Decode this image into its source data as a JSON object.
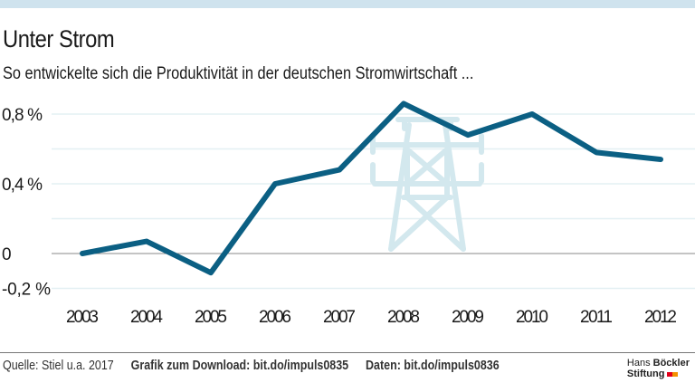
{
  "header": {
    "title": "Unter Strom",
    "subtitle": "So entwickelte sich die Produktivität in der deutschen Stromwirtschaft ..."
  },
  "chart_data": {
    "type": "line",
    "title": "Unter Strom",
    "subtitle": "So entwickelte sich die Produktivität in der deutschen Stromwirtschaft ...",
    "xlabel": "",
    "ylabel": "",
    "x": [
      "2003",
      "2004",
      "2005",
      "2006",
      "2007",
      "2008",
      "2009",
      "2010",
      "2011",
      "2012"
    ],
    "series": [
      {
        "name": "Produktivität",
        "values": [
          0.0,
          0.07,
          -0.11,
          0.4,
          0.48,
          0.86,
          0.68,
          0.8,
          0.58,
          0.54
        ],
        "color": "#0b5f83"
      }
    ],
    "ylim": [
      -0.2,
      0.8
    ],
    "yticks": [
      {
        "value": 0.8,
        "label": "0,8 %"
      },
      {
        "value": 0.4,
        "label": "0,4 %"
      },
      {
        "value": 0,
        "label": "0"
      },
      {
        "value": -0.2,
        "label": "-0,2 %"
      }
    ],
    "gridlines": [
      0.8,
      0.6,
      0.4,
      0.2,
      -0.2
    ],
    "grid": true,
    "legend": "none",
    "background_icon": "power-pylon-icon"
  },
  "footer": {
    "source": "Quelle: Stiel u.a. 2017",
    "download": "Grafik zum Download: bit.do/impuls0835",
    "data": "Daten: bit.do/impuls0836"
  },
  "logo": {
    "line1_light": "Hans",
    "line1_bold": "Böckler",
    "line2": "Stiftung",
    "colors": [
      "#e2001a",
      "#f39200"
    ]
  },
  "colors": {
    "line": "#0b5f83",
    "grid": "#e3f0f3",
    "zero_line": "#888888",
    "topbar": "#cfe3ee",
    "pylon": "#d3e8ee"
  }
}
